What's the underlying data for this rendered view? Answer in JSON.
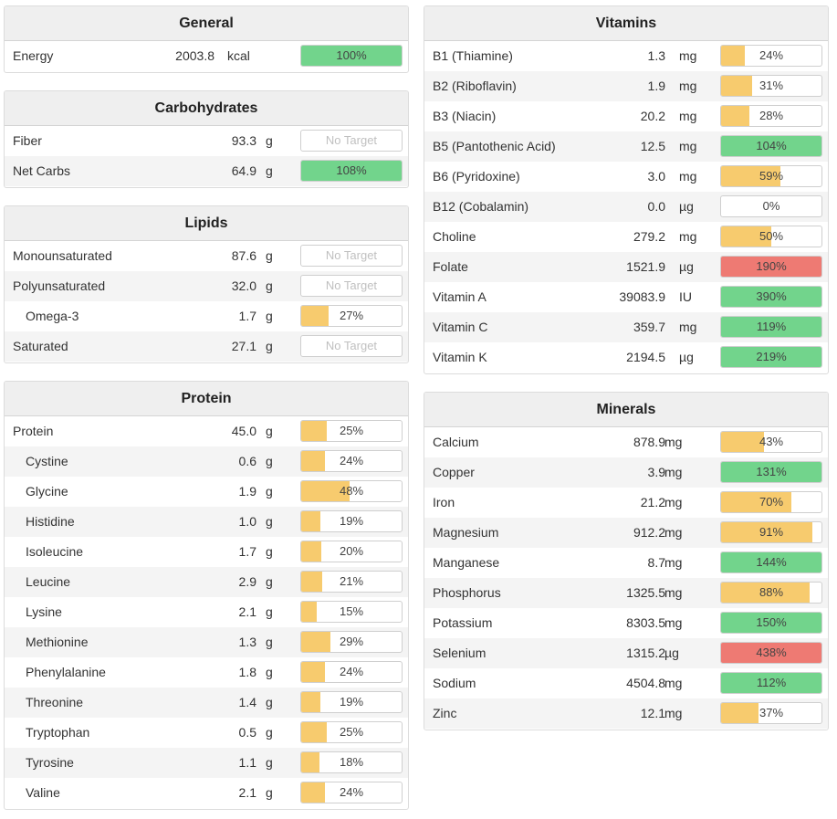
{
  "colors": {
    "green": "#72d48c",
    "yellow": "#f7cb6e",
    "red": "#ee7a73"
  },
  "general": {
    "title": "General",
    "rows": [
      {
        "name": "Energy",
        "amount": "2003.8",
        "unit": "kcal",
        "pct": "100%",
        "fill": 100,
        "color": "green",
        "indent": false
      }
    ]
  },
  "carbohydrates": {
    "title": "Carbohydrates",
    "rows": [
      {
        "name": "Fiber",
        "amount": "93.3",
        "unit": "g",
        "pct": "No Target",
        "fill": 0,
        "color": "none",
        "indent": false
      },
      {
        "name": "Net Carbs",
        "amount": "64.9",
        "unit": "g",
        "pct": "108%",
        "fill": 100,
        "color": "green",
        "indent": false
      }
    ]
  },
  "lipids": {
    "title": "Lipids",
    "rows": [
      {
        "name": "Monounsaturated",
        "amount": "87.6",
        "unit": "g",
        "pct": "No Target",
        "fill": 0,
        "color": "none",
        "indent": false
      },
      {
        "name": "Polyunsaturated",
        "amount": "32.0",
        "unit": "g",
        "pct": "No Target",
        "fill": 0,
        "color": "none",
        "indent": false
      },
      {
        "name": "Omega-3",
        "amount": "1.7",
        "unit": "g",
        "pct": "27%",
        "fill": 27,
        "color": "yellow",
        "indent": true
      },
      {
        "name": "Saturated",
        "amount": "27.1",
        "unit": "g",
        "pct": "No Target",
        "fill": 0,
        "color": "none",
        "indent": false
      }
    ]
  },
  "protein": {
    "title": "Protein",
    "rows": [
      {
        "name": "Protein",
        "amount": "45.0",
        "unit": "g",
        "pct": "25%",
        "fill": 25,
        "color": "yellow",
        "indent": false
      },
      {
        "name": "Cystine",
        "amount": "0.6",
        "unit": "g",
        "pct": "24%",
        "fill": 24,
        "color": "yellow",
        "indent": true
      },
      {
        "name": "Glycine",
        "amount": "1.9",
        "unit": "g",
        "pct": "48%",
        "fill": 48,
        "color": "yellow",
        "indent": true
      },
      {
        "name": "Histidine",
        "amount": "1.0",
        "unit": "g",
        "pct": "19%",
        "fill": 19,
        "color": "yellow",
        "indent": true
      },
      {
        "name": "Isoleucine",
        "amount": "1.7",
        "unit": "g",
        "pct": "20%",
        "fill": 20,
        "color": "yellow",
        "indent": true
      },
      {
        "name": "Leucine",
        "amount": "2.9",
        "unit": "g",
        "pct": "21%",
        "fill": 21,
        "color": "yellow",
        "indent": true
      },
      {
        "name": "Lysine",
        "amount": "2.1",
        "unit": "g",
        "pct": "15%",
        "fill": 15,
        "color": "yellow",
        "indent": true
      },
      {
        "name": "Methionine",
        "amount": "1.3",
        "unit": "g",
        "pct": "29%",
        "fill": 29,
        "color": "yellow",
        "indent": true
      },
      {
        "name": "Phenylalanine",
        "amount": "1.8",
        "unit": "g",
        "pct": "24%",
        "fill": 24,
        "color": "yellow",
        "indent": true
      },
      {
        "name": "Threonine",
        "amount": "1.4",
        "unit": "g",
        "pct": "19%",
        "fill": 19,
        "color": "yellow",
        "indent": true
      },
      {
        "name": "Tryptophan",
        "amount": "0.5",
        "unit": "g",
        "pct": "25%",
        "fill": 25,
        "color": "yellow",
        "indent": true
      },
      {
        "name": "Tyrosine",
        "amount": "1.1",
        "unit": "g",
        "pct": "18%",
        "fill": 18,
        "color": "yellow",
        "indent": true
      },
      {
        "name": "Valine",
        "amount": "2.1",
        "unit": "g",
        "pct": "24%",
        "fill": 24,
        "color": "yellow",
        "indent": true
      }
    ]
  },
  "vitamins": {
    "title": "Vitamins",
    "rows": [
      {
        "name": "B1 (Thiamine)",
        "amount": "1.3",
        "unit": "mg",
        "pct": "24%",
        "fill": 24,
        "color": "yellow"
      },
      {
        "name": "B2 (Riboflavin)",
        "amount": "1.9",
        "unit": "mg",
        "pct": "31%",
        "fill": 31,
        "color": "yellow"
      },
      {
        "name": "B3 (Niacin)",
        "amount": "20.2",
        "unit": "mg",
        "pct": "28%",
        "fill": 28,
        "color": "yellow"
      },
      {
        "name": "B5 (Pantothenic Acid)",
        "amount": "12.5",
        "unit": "mg",
        "pct": "104%",
        "fill": 100,
        "color": "green"
      },
      {
        "name": "B6 (Pyridoxine)",
        "amount": "3.0",
        "unit": "mg",
        "pct": "59%",
        "fill": 59,
        "color": "yellow"
      },
      {
        "name": "B12 (Cobalamin)",
        "amount": "0.0",
        "unit": "µg",
        "pct": "0%",
        "fill": 0,
        "color": "yellow"
      },
      {
        "name": "Choline",
        "amount": "279.2",
        "unit": "mg",
        "pct": "50%",
        "fill": 50,
        "color": "yellow"
      },
      {
        "name": "Folate",
        "amount": "1521.9",
        "unit": "µg",
        "pct": "190%",
        "fill": 100,
        "color": "red"
      },
      {
        "name": "Vitamin A",
        "amount": "39083.9",
        "unit": "IU",
        "pct": "390%",
        "fill": 100,
        "color": "green"
      },
      {
        "name": "Vitamin C",
        "amount": "359.7",
        "unit": "mg",
        "pct": "119%",
        "fill": 100,
        "color": "green"
      },
      {
        "name": "Vitamin K",
        "amount": "2194.5",
        "unit": "µg",
        "pct": "219%",
        "fill": 100,
        "color": "green"
      }
    ]
  },
  "minerals": {
    "title": "Minerals",
    "rows": [
      {
        "name": "Calcium",
        "amount": "878.9",
        "unit": "mg",
        "pct": "43%",
        "fill": 43,
        "color": "yellow"
      },
      {
        "name": "Copper",
        "amount": "3.9",
        "unit": "mg",
        "pct": "131%",
        "fill": 100,
        "color": "green"
      },
      {
        "name": "Iron",
        "amount": "21.2",
        "unit": "mg",
        "pct": "70%",
        "fill": 70,
        "color": "yellow"
      },
      {
        "name": "Magnesium",
        "amount": "912.2",
        "unit": "mg",
        "pct": "91%",
        "fill": 91,
        "color": "yellow"
      },
      {
        "name": "Manganese",
        "amount": "8.7",
        "unit": "mg",
        "pct": "144%",
        "fill": 100,
        "color": "green"
      },
      {
        "name": "Phosphorus",
        "amount": "1325.5",
        "unit": "mg",
        "pct": "88%",
        "fill": 88,
        "color": "yellow"
      },
      {
        "name": "Potassium",
        "amount": "8303.5",
        "unit": "mg",
        "pct": "150%",
        "fill": 100,
        "color": "green"
      },
      {
        "name": "Selenium",
        "amount": "1315.2",
        "unit": "µg",
        "pct": "438%",
        "fill": 100,
        "color": "red"
      },
      {
        "name": "Sodium",
        "amount": "4504.8",
        "unit": "mg",
        "pct": "112%",
        "fill": 100,
        "color": "green"
      },
      {
        "name": "Zinc",
        "amount": "12.1",
        "unit": "mg",
        "pct": "37%",
        "fill": 37,
        "color": "yellow"
      }
    ]
  }
}
